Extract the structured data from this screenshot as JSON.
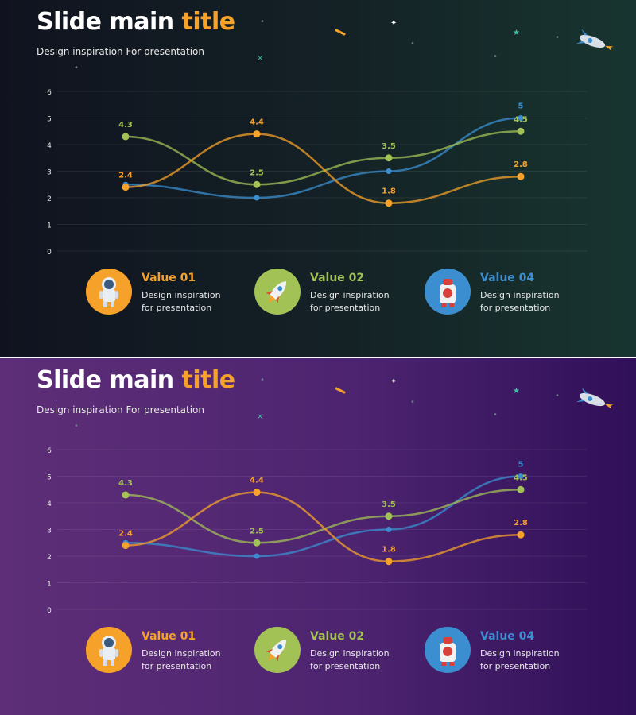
{
  "slides": [
    {
      "theme": "dark",
      "title_main": "Slide main ",
      "title_accent": "title",
      "subtitle": "Design inspiration For presentation"
    },
    {
      "theme": "purple",
      "title_main": "Slide main ",
      "title_accent": "title",
      "subtitle": "Design inspiration For presentation"
    }
  ],
  "legend": [
    {
      "name": "Value 01",
      "line1": "Design inspiration",
      "line2": "for presentation",
      "color": "#f5a12a",
      "icon": "astronaut-icon"
    },
    {
      "name": "Value 02",
      "line1": "Design inspiration",
      "line2": "for presentation",
      "color": "#a3c255",
      "icon": "rocket-icon"
    },
    {
      "name": "Value 04",
      "line1": "Design inspiration",
      "line2": "for presentation",
      "color": "#3b8fd0",
      "icon": "robot-icon"
    }
  ],
  "chart_data": {
    "type": "line",
    "categories": [
      "",
      "",
      "",
      ""
    ],
    "ylim": [
      0,
      6
    ],
    "yticks": [
      0,
      1,
      2,
      3,
      4,
      5,
      6
    ],
    "grid": true,
    "smooth": true,
    "series": [
      {
        "name": "Value 01",
        "color": "#f5a12a",
        "values": [
          2.4,
          4.4,
          1.8,
          2.8
        ],
        "labels": [
          "2.4",
          "4.4",
          "1.8",
          "2.8"
        ]
      },
      {
        "name": "Value 02",
        "color": "#a3c255",
        "values": [
          4.3,
          2.5,
          3.5,
          4.5
        ],
        "labels": [
          "4.3",
          "2.5",
          "3.5",
          "4.5"
        ]
      },
      {
        "name": "Value 04",
        "color": "#3b8fd0",
        "values": [
          2.5,
          2.0,
          3.0,
          5.0
        ],
        "labels": [
          "",
          "",
          "",
          "5"
        ]
      }
    ]
  }
}
